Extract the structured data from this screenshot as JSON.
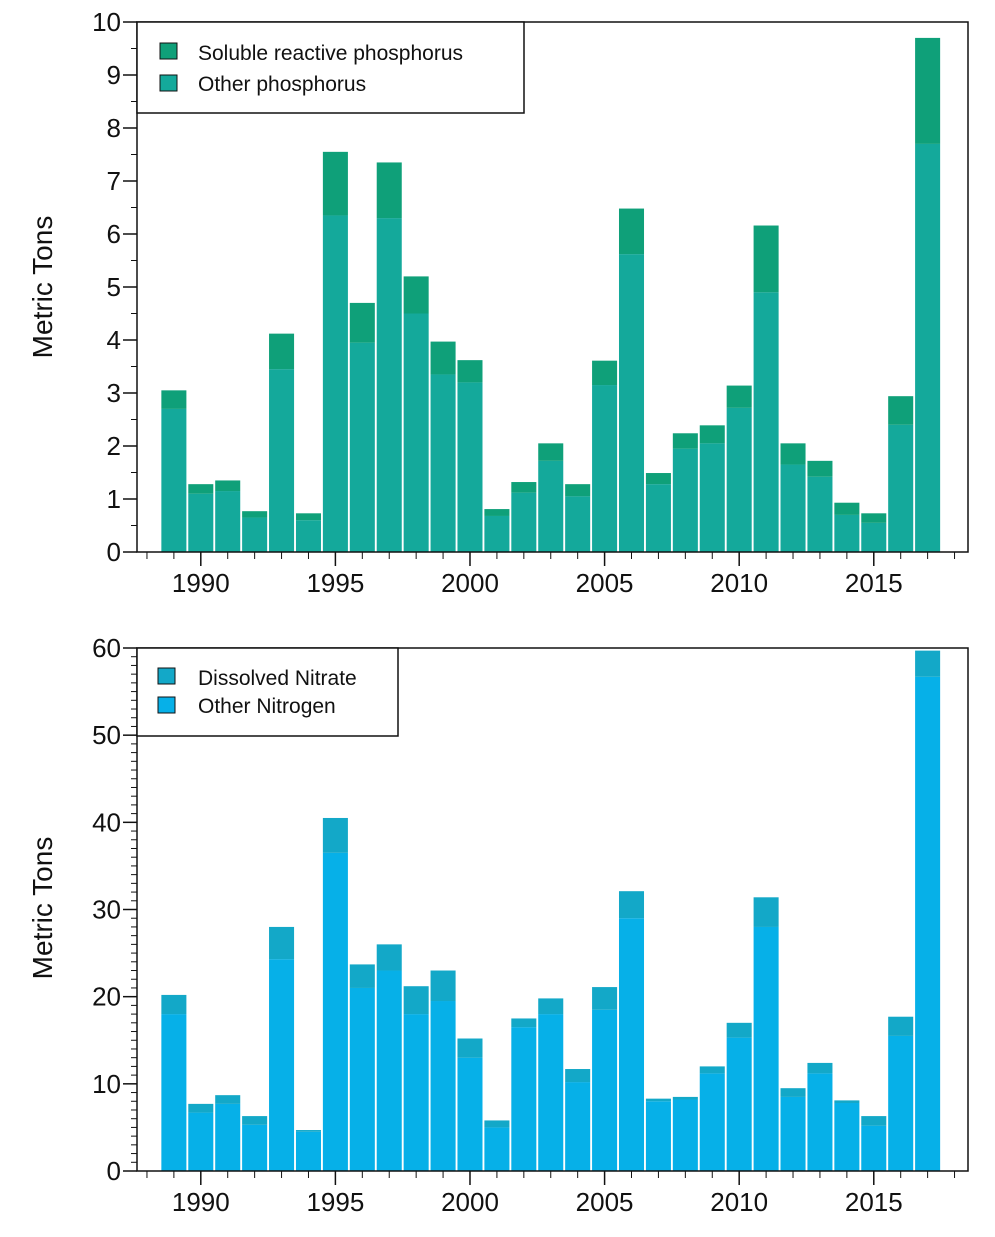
{
  "charts": [
    {
      "chart_data": {
        "type": "bar",
        "stacked": true,
        "x": [
          1989,
          1990,
          1991,
          1992,
          1993,
          1994,
          1995,
          1996,
          1997,
          1998,
          1999,
          2000,
          2001,
          2002,
          2003,
          2004,
          2005,
          2006,
          2007,
          2008,
          2009,
          2010,
          2011,
          2012,
          2013,
          2014,
          2015,
          2016,
          2017
        ],
        "series": [
          {
            "name": "Other phosphorus",
            "color": "#14a99b",
            "values": [
              2.7,
              1.1,
              1.15,
              0.65,
              3.45,
              0.6,
              6.35,
              3.95,
              6.3,
              4.5,
              3.35,
              3.2,
              0.68,
              1.12,
              1.72,
              1.05,
              3.15,
              5.62,
              1.28,
              1.95,
              2.05,
              2.72,
              4.9,
              1.65,
              1.42,
              0.7,
              0.55,
              2.4,
              7.7
            ]
          },
          {
            "name": "Soluble reactive phosphorus",
            "color": "#0fa079",
            "values": [
              0.35,
              0.18,
              0.2,
              0.12,
              0.67,
              0.13,
              1.2,
              0.75,
              1.05,
              0.7,
              0.62,
              0.42,
              0.13,
              0.2,
              0.33,
              0.23,
              0.46,
              0.86,
              0.21,
              0.29,
              0.34,
              0.42,
              1.26,
              0.4,
              0.3,
              0.23,
              0.18,
              0.54,
              2.0
            ]
          }
        ],
        "xlabel": "",
        "ylabel": "Metric Tons",
        "ylim": [
          0,
          10
        ],
        "y_ticks": [
          "0",
          "1",
          "2",
          "3",
          "4",
          "5",
          "6",
          "7",
          "8",
          "9",
          "10"
        ],
        "x_ticks": [
          "1990",
          "1995",
          "2000",
          "2005",
          "2010",
          "2015"
        ],
        "legend_order": [
          "Soluble reactive phosphorus",
          "Other phosphorus"
        ],
        "legend_placement": "top-left",
        "grid": false
      }
    },
    {
      "chart_data": {
        "type": "bar",
        "stacked": true,
        "x": [
          1989,
          1990,
          1991,
          1992,
          1993,
          1994,
          1995,
          1996,
          1997,
          1998,
          1999,
          2000,
          2001,
          2002,
          2003,
          2004,
          2005,
          2006,
          2007,
          2008,
          2009,
          2010,
          2011,
          2012,
          2013,
          2014,
          2015,
          2016,
          2017
        ],
        "series": [
          {
            "name": "Other Nitrogen",
            "color": "#06b0e8",
            "values": [
              18,
              6.7,
              7.7,
              5.3,
              24.3,
              4.5,
              36.5,
              21,
              23,
              18,
              19.5,
              13,
              5,
              16.5,
              18,
              10.2,
              18.5,
              29,
              8,
              8.2,
              11.2,
              15.3,
              28,
              8.5,
              11.2,
              7.8,
              5.2,
              15.5,
              56.7
            ]
          },
          {
            "name": "Dissolved Nitrate",
            "color": "#13a8c8",
            "values": [
              2.2,
              1.0,
              1.0,
              1.0,
              3.7,
              0.2,
              4.0,
              2.7,
              3.0,
              3.2,
              3.5,
              2.2,
              0.8,
              1.0,
              1.8,
              1.5,
              2.6,
              3.1,
              0.3,
              0.3,
              0.8,
              1.7,
              3.4,
              1.0,
              1.2,
              0.3,
              1.1,
              2.2,
              3.0
            ]
          }
        ],
        "xlabel": "",
        "ylabel": "Metric Tons",
        "ylim": [
          0,
          60
        ],
        "y_ticks": [
          "0",
          "10",
          "20",
          "30",
          "40",
          "50",
          "60"
        ],
        "x_ticks": [
          "1990",
          "1995",
          "2000",
          "2005",
          "2010",
          "2015"
        ],
        "legend_order": [
          "Dissolved Nitrate",
          "Other Nitrogen"
        ],
        "legend_placement": "top-left",
        "grid": false
      }
    }
  ]
}
